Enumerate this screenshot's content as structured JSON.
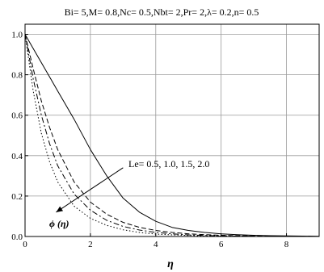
{
  "chart_data": {
    "type": "line",
    "title": "Bi= 5,M= 0.8,Nc= 0.5,Nbt= 2,Pr= 2,λ= 0.2,n= 0.5",
    "xlabel": "η",
    "ylabel": "",
    "xlim": [
      0,
      9
    ],
    "ylim": [
      0,
      1.05
    ],
    "grid": true,
    "x_ticks": [
      "0",
      "2",
      "4",
      "6",
      "8"
    ],
    "y_ticks": [
      "0.0",
      "0.2",
      "0.4",
      "0.6",
      "0.8",
      "1.0"
    ],
    "annotation": {
      "text": "Le= 0.5, 1.0, 1.5, 2.0",
      "curve_label": "ϕ (η)",
      "arrow_from": [
        3.0,
        0.34
      ],
      "arrow_to": [
        0.95,
        0.12
      ]
    },
    "x": [
      0,
      0.25,
      0.5,
      0.75,
      1.0,
      1.5,
      2.0,
      2.5,
      3.0,
      3.5,
      4.0,
      4.5,
      5.0,
      5.5,
      6.0,
      6.5,
      7.0,
      7.5,
      8.0,
      8.5,
      9.0
    ],
    "series": [
      {
        "style": "solid",
        "values": [
          1.0,
          0.93,
          0.86,
          0.79,
          0.72,
          0.58,
          0.43,
          0.3,
          0.19,
          0.12,
          0.075,
          0.045,
          0.03,
          0.02,
          0.013,
          0.009,
          0.006,
          0.004,
          0.003,
          0.002,
          0.001
        ]
      },
      {
        "style": "dashed",
        "values": [
          1.0,
          0.83,
          0.67,
          0.54,
          0.43,
          0.27,
          0.17,
          0.11,
          0.07,
          0.045,
          0.03,
          0.02,
          0.013,
          0.009,
          0.006,
          0.004,
          0.003,
          0.002,
          0.001,
          0.0,
          0.0
        ]
      },
      {
        "style": "dashdot",
        "values": [
          1.0,
          0.78,
          0.6,
          0.46,
          0.35,
          0.21,
          0.13,
          0.08,
          0.05,
          0.032,
          0.02,
          0.013,
          0.008,
          0.005,
          0.003,
          0.002,
          0.001,
          0.0,
          0.0,
          0.0,
          0.0
        ]
      },
      {
        "style": "dotted",
        "values": [
          1.0,
          0.72,
          0.51,
          0.37,
          0.27,
          0.15,
          0.09,
          0.055,
          0.033,
          0.02,
          0.012,
          0.008,
          0.005,
          0.003,
          0.002,
          0.001,
          0.0,
          0.0,
          0.0,
          0.0,
          0.0
        ]
      }
    ]
  }
}
